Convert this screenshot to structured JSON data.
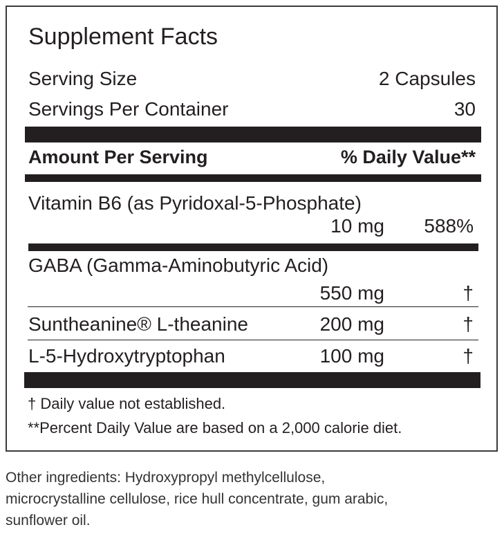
{
  "title": "Supplement Facts",
  "serving_size": {
    "label": "Serving Size",
    "value": "2 Capsules"
  },
  "servings_per_container": {
    "label": "Servings Per Container",
    "value": "30"
  },
  "header": {
    "amount": "Amount Per Serving",
    "dv": "% Daily Value**"
  },
  "vitamin_b6": {
    "name": "Vitamin B6 (as Pyridoxal-5-Phosphate)",
    "amount": "10 mg",
    "dv": "588%"
  },
  "ingredients": [
    {
      "name": "GABA (Gamma-Aminobutyric Acid)",
      "amount": "550 mg",
      "dv": "†"
    },
    {
      "name": "Suntheanine® L-theanine",
      "amount": "200 mg",
      "dv": "†"
    },
    {
      "name": "L-5-Hydroxytryptophan",
      "amount": "100 mg",
      "dv": "†"
    }
  ],
  "footnotes": [
    "† Daily value not established.",
    "**Percent Daily Value are based on a 2,000 calorie diet."
  ],
  "other_ingredients": [
    "Other ingredients: Hydroxypropyl methylcellulose,",
    "microcrystalline cellulose, rice hull concentrate, gum arabic,",
    "sunflower oil."
  ]
}
